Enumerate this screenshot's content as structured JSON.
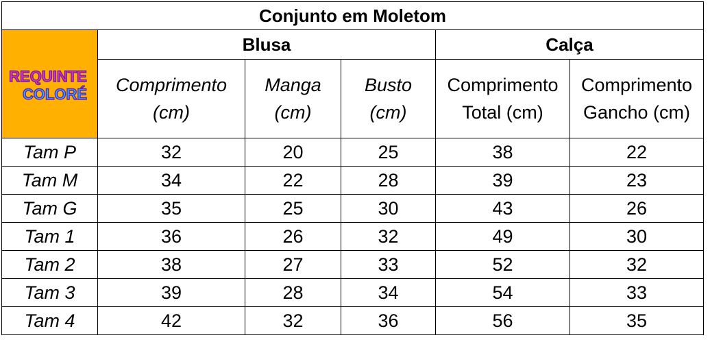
{
  "table": {
    "title": "Conjunto em Moletom",
    "logo_text": [
      "REQUINTE",
      "COLORÉ"
    ],
    "groups": {
      "blusa": "Blusa",
      "calca": "Calça"
    },
    "headers": [
      [
        "Comprimento",
        "(cm)"
      ],
      [
        "Manga",
        "(cm)"
      ],
      [
        "Busto",
        "(cm)"
      ],
      [
        "Comprimento",
        "Total (cm)"
      ],
      [
        "Comprimento",
        "Gancho (cm)"
      ]
    ],
    "rows": [
      {
        "size": "Tam P",
        "values": [
          "32",
          "20",
          "25",
          "38",
          "22"
        ]
      },
      {
        "size": "Tam M",
        "values": [
          "34",
          "22",
          "28",
          "39",
          "23"
        ]
      },
      {
        "size": "Tam G",
        "values": [
          "35",
          "25",
          "30",
          "43",
          "26"
        ]
      },
      {
        "size": "Tam 1",
        "values": [
          "36",
          "26",
          "32",
          "49",
          "30"
        ]
      },
      {
        "size": "Tam 2",
        "values": [
          "38",
          "27",
          "33",
          "52",
          "32"
        ]
      },
      {
        "size": "Tam 3",
        "values": [
          "39",
          "28",
          "34",
          "54",
          "33"
        ]
      },
      {
        "size": "Tam 4",
        "values": [
          "42",
          "32",
          "36",
          "56",
          "35"
        ]
      }
    ],
    "colors": {
      "logo_bg": "#ffb000",
      "border": "#000000"
    }
  }
}
